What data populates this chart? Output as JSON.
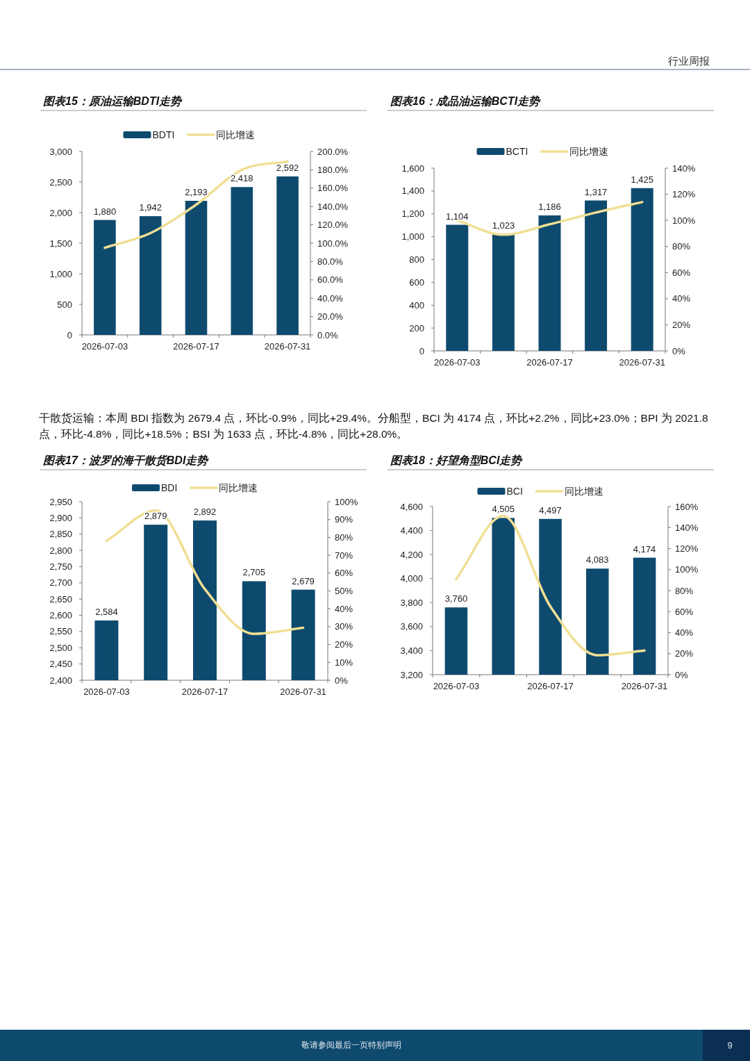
{
  "chart_data": [
    {
      "type": "bar",
      "title": "图表15：原油运输BDTI走势",
      "categories": [
        "2026-07-03",
        null,
        "2026-07-17",
        null,
        "2026-07-31"
      ],
      "series": [
        {
          "name": "BDTI",
          "color": "#0e4a6e",
          "values": [
            1880,
            1942,
            2193,
            2418,
            2592
          ],
          "value_labels": [
            "1,880",
            "1,942",
            "2,193",
            "2,418",
            "2,592"
          ]
        },
        {
          "name": "同比增速",
          "type": "line",
          "axis": "y2",
          "color": "#f0df94",
          "values": [
            95,
            111,
            142,
            180,
            189
          ]
        }
      ],
      "ylim": [
        0,
        3000
      ],
      "yticks": [
        0,
        500,
        {
          "value": 1000,
          "label": "1,000"
        },
        {
          "value": 1500,
          "label": "1,500"
        },
        {
          "value": 2000,
          "label": "2,000"
        },
        {
          "value": 2500,
          "label": "2,500"
        },
        {
          "value": 3000,
          "label": "3,000"
        }
      ],
      "y2lim": [
        0,
        200
      ],
      "y2ticks": [
        {
          "value": 0,
          "label": "0.0%"
        },
        {
          "value": 20,
          "label": "20.0%"
        },
        {
          "value": 40,
          "label": "40.0%"
        },
        {
          "value": 60,
          "label": "60.0%"
        },
        {
          "value": 80,
          "label": "80.0%"
        },
        {
          "value": 100,
          "label": "100.0%"
        },
        {
          "value": 120,
          "label": "120.0%"
        },
        {
          "value": 140,
          "label": "140.0%"
        },
        {
          "value": 160,
          "label": "160.0%"
        },
        {
          "value": 180,
          "label": "180.0%"
        },
        {
          "value": 200,
          "label": "200.0%"
        }
      ],
      "legend": "top",
      "grid": false,
      "annotations": [
        "行业周报"
      ]
    },
    {
      "type": "bar",
      "title": "图表16：成品油运输BCTI走势",
      "categories": [
        "2026-07-03",
        null,
        "2026-07-17",
        null,
        "2026-07-31"
      ],
      "series": [
        {
          "name": "BCTI",
          "color": "#0e4a6e",
          "values": [
            1104,
            1023,
            1186,
            1317,
            1425
          ],
          "value_labels": [
            "1,104",
            "1,023",
            "1,186",
            "1,317",
            "1,425"
          ]
        },
        {
          "name": "同比增速",
          "type": "line",
          "axis": "y2",
          "color": "#f0df94",
          "values": [
            100,
            89,
            97,
            106,
            114
          ]
        }
      ],
      "ylim": [
        0,
        1600
      ],
      "yticks": [
        0,
        200,
        400,
        600,
        800,
        {
          "value": 1000,
          "label": "1,000"
        },
        {
          "value": 1200,
          "label": "1,200"
        },
        {
          "value": 1400,
          "label": "1,400"
        },
        {
          "value": 1600,
          "label": "1,600"
        }
      ],
      "y2lim": [
        0,
        140
      ],
      "y2ticks": [
        {
          "value": 0,
          "label": "0%"
        },
        {
          "value": 20,
          "label": "20%"
        },
        {
          "value": 40,
          "label": "40%"
        },
        {
          "value": 60,
          "label": "60%"
        },
        {
          "value": 80,
          "label": "80%"
        },
        {
          "value": 100,
          "label": "100%"
        },
        {
          "value": 120,
          "label": "120%"
        },
        {
          "value": 140,
          "label": "140%"
        }
      ],
      "legend": "top",
      "grid": false,
      "annotations": [
        "干散货运输：本周 BDI 指数为 2679.4 点，环比-0.9%，同比+29.4%。分船型，BCI 为 4174 点，环比+2.2%，同比+23.0%；BPI 为 2021.8 点，环比-4.8%，同比+18.5%；BSI 为 1633 点，环比-4.8%，同比+28.0%。"
      ]
    },
    {
      "type": "bar",
      "title": "图表17：波罗的海干散货BDI走势",
      "categories": [
        "2026-07-03",
        null,
        "2026-07-17",
        null,
        "2026-07-31"
      ],
      "series": [
        {
          "name": "BDI",
          "color": "#0e4a6e",
          "values": [
            2584,
            2879,
            2892,
            2705,
            2679
          ],
          "value_labels": [
            "2,584",
            "2,879",
            "2,892",
            "2,705",
            "2,679"
          ]
        },
        {
          "name": "同比增速",
          "type": "line",
          "axis": "y2",
          "color": "#f0df94",
          "values": [
            78,
            95,
            51,
            26,
            29.4
          ]
        }
      ],
      "ylim": [
        2400,
        2950
      ],
      "yticks": [
        {
          "value": 2400,
          "label": "2,400"
        },
        {
          "value": 2450,
          "label": "2,450"
        },
        {
          "value": 2500,
          "label": "2,500"
        },
        {
          "value": 2550,
          "label": "2,550"
        },
        {
          "value": 2600,
          "label": "2,600"
        },
        {
          "value": 2650,
          "label": "2,650"
        },
        {
          "value": 2700,
          "label": "2,700"
        },
        {
          "value": 2750,
          "label": "2,750"
        },
        {
          "value": 2800,
          "label": "2,800"
        },
        {
          "value": 2850,
          "label": "2,850"
        },
        {
          "value": 2900,
          "label": "2,900"
        },
        {
          "value": 2950,
          "label": "2,950"
        }
      ],
      "y2lim": [
        0,
        100
      ],
      "y2ticks": [
        {
          "value": 0,
          "label": "0%"
        },
        {
          "value": 10,
          "label": "10%"
        },
        {
          "value": 20,
          "label": "20%"
        },
        {
          "value": 30,
          "label": "30%"
        },
        {
          "value": 40,
          "label": "40%"
        },
        {
          "value": 50,
          "label": "50%"
        },
        {
          "value": 60,
          "label": "60%"
        },
        {
          "value": 70,
          "label": "70%"
        },
        {
          "value": 80,
          "label": "80%"
        },
        {
          "value": 90,
          "label": "90%"
        },
        {
          "value": 100,
          "label": "100%"
        }
      ],
      "legend": "top",
      "grid": false
    },
    {
      "type": "bar",
      "title": "图表18：好望角型BCI走势",
      "categories": [
        "2026-07-03",
        null,
        "2026-07-17",
        null,
        "2026-07-31"
      ],
      "series": [
        {
          "name": "BCI",
          "color": "#0e4a6e",
          "values": [
            3760,
            4505,
            4497,
            4083,
            4174
          ],
          "value_labels": [
            "3,760",
            "4,505",
            "4,497",
            "4,083",
            "4,174"
          ]
        },
        {
          "name": "同比增速",
          "type": "line",
          "axis": "y2",
          "color": "#f0df94",
          "values": [
            91,
            151,
            65,
            18.5,
            23
          ]
        }
      ],
      "ylim": [
        3200,
        4600
      ],
      "yticks": [
        {
          "value": 3200,
          "label": "3,200"
        },
        {
          "value": 3400,
          "label": "3,400"
        },
        {
          "value": 3600,
          "label": "3,600"
        },
        {
          "value": 3800,
          "label": "3,800"
        },
        {
          "value": 4000,
          "label": "4,000"
        },
        {
          "value": 4200,
          "label": "4,200"
        },
        {
          "value": 4400,
          "label": "4,400"
        },
        {
          "value": 4600,
          "label": "4,600"
        }
      ],
      "y2lim": [
        0,
        160
      ],
      "y2ticks": [
        {
          "value": 0,
          "label": "0%"
        },
        {
          "value": 20,
          "label": "20%"
        },
        {
          "value": 40,
          "label": "40%"
        },
        {
          "value": 60,
          "label": "60%"
        },
        {
          "value": 80,
          "label": "80%"
        },
        {
          "value": 100,
          "label": "100%"
        },
        {
          "value": 120,
          "label": "120%"
        },
        {
          "value": 140,
          "label": "140%"
        },
        {
          "value": 160,
          "label": "160%"
        }
      ],
      "legend": "top",
      "grid": false,
      "annotations": [
        "敬请参阅最后一页特别声明",
        "9"
      ]
    }
  ]
}
